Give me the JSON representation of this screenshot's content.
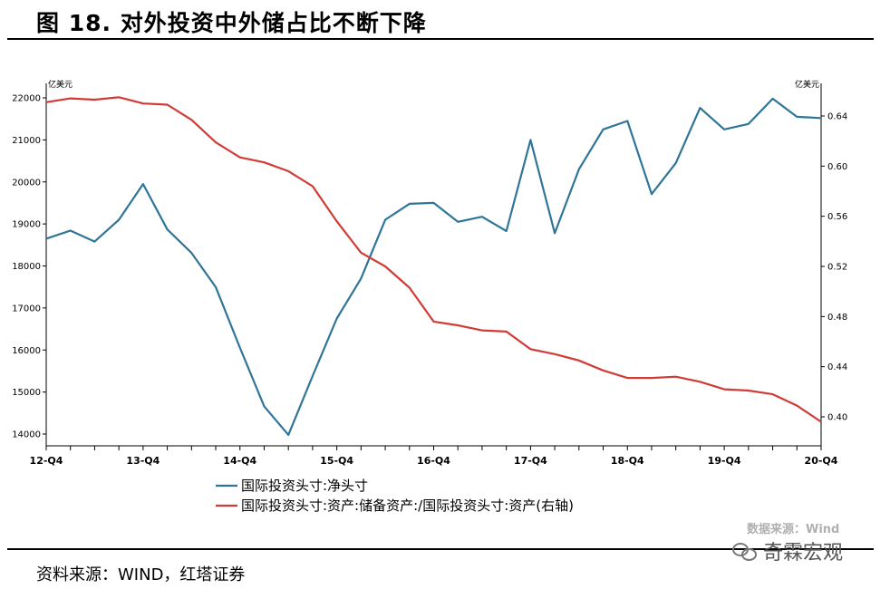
{
  "header": {
    "title": "图 18. 对外投资中外储占比不断下降"
  },
  "footer": {
    "source": "资料来源：WIND，红塔证券",
    "watermark_source": "数据来源：Wind",
    "watermark_brand": "奇霖宏观"
  },
  "chart_data": {
    "type": "line",
    "left_unit": "亿美元",
    "right_unit": "亿美元",
    "y_left_range": [
      14000,
      22000
    ],
    "y_left_ticks": [
      "14000",
      "15000",
      "16000",
      "17000",
      "18000",
      "19000",
      "20000",
      "21000",
      "22000"
    ],
    "y_right_range": [
      0.4,
      0.64
    ],
    "y_right_ticks": [
      "0.40",
      "0.44",
      "0.48",
      "0.52",
      "0.56",
      "0.60",
      "0.64"
    ],
    "x_labels": [
      "12-Q4",
      "13-Q4",
      "14-Q4",
      "15-Q4",
      "16-Q4",
      "17-Q4",
      "18-Q4",
      "19-Q4",
      "20-Q4"
    ],
    "series": [
      {
        "name": "国际投资头寸:净头寸",
        "axis": "left",
        "color": "#2e7597",
        "values": [
          18650,
          18840,
          18580,
          19100,
          19950,
          18870,
          18310,
          17500,
          16050,
          14660,
          13980,
          15380,
          16750,
          17700,
          19100,
          19480,
          19500,
          19050,
          19170,
          18830,
          21000,
          18780,
          20300,
          21250,
          21450,
          19710,
          20450,
          21760,
          21250,
          21380,
          21980,
          21550,
          21520
        ]
      },
      {
        "name": "国际投资头寸:资产:储备资产:/国际投资头寸:资产(右轴)",
        "axis": "right",
        "color": "#d13b36",
        "values": [
          0.651,
          0.654,
          0.653,
          0.655,
          0.65,
          0.649,
          0.637,
          0.619,
          0.607,
          0.603,
          0.596,
          0.584,
          0.556,
          0.531,
          0.52,
          0.503,
          0.476,
          0.473,
          0.469,
          0.468,
          0.454,
          0.45,
          0.445,
          0.437,
          0.431,
          0.431,
          0.432,
          0.428,
          0.422,
          0.421,
          0.418,
          0.409,
          0.396
        ]
      }
    ]
  }
}
